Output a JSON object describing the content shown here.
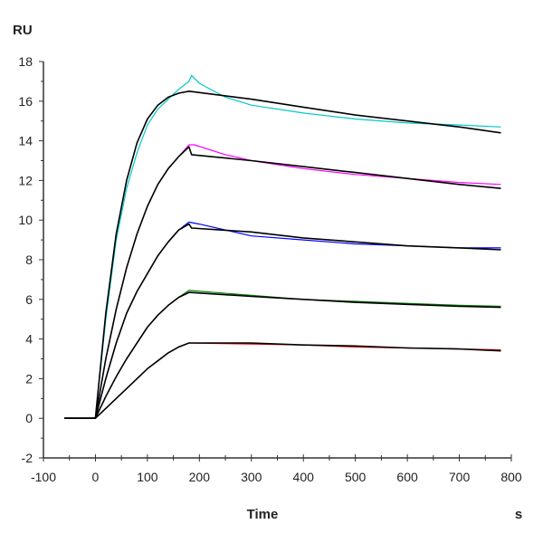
{
  "chart_data": {
    "type": "line",
    "title": "",
    "xlabel": "Time",
    "xunit": "s",
    "ylabel": "RU",
    "xlim": [
      -100,
      800
    ],
    "ylim": [
      -2,
      18
    ],
    "xticks": [
      -100,
      0,
      100,
      200,
      300,
      400,
      500,
      600,
      700,
      800
    ],
    "yticks": [
      -2,
      0,
      2,
      4,
      6,
      8,
      10,
      12,
      14,
      16,
      18
    ],
    "grid": false,
    "legend": "none",
    "series": [
      {
        "color": "#00c8c8",
        "kind": "data",
        "x": [
          -60,
          0,
          20,
          40,
          60,
          80,
          100,
          120,
          140,
          160,
          180,
          185,
          200,
          250,
          300,
          400,
          500,
          600,
          700,
          780
        ],
        "y": [
          0,
          0,
          5,
          9,
          11.6,
          13.4,
          14.8,
          15.6,
          16.1,
          16.6,
          17.0,
          17.3,
          16.9,
          16.2,
          15.8,
          15.4,
          15.1,
          14.9,
          14.8,
          14.7
        ]
      },
      {
        "color": "#000000",
        "kind": "fit",
        "x": [
          -60,
          0,
          20,
          40,
          60,
          80,
          100,
          120,
          140,
          160,
          180,
          300,
          400,
          500,
          600,
          700,
          780
        ],
        "y": [
          0,
          0,
          5.3,
          9.3,
          12,
          13.9,
          15.1,
          15.8,
          16.2,
          16.4,
          16.5,
          16.1,
          15.7,
          15.3,
          15,
          14.7,
          14.4
        ]
      },
      {
        "color": "#ff00ff",
        "kind": "data",
        "x": [
          -60,
          0,
          20,
          40,
          60,
          80,
          100,
          120,
          140,
          160,
          180,
          190,
          250,
          300,
          400,
          500,
          600,
          700,
          780
        ],
        "y": [
          0,
          0,
          3,
          5.5,
          7.6,
          9.3,
          10.7,
          11.8,
          12.6,
          13.2,
          13.8,
          13.8,
          13.3,
          13.0,
          12.6,
          12.3,
          12.1,
          11.9,
          11.8
        ]
      },
      {
        "color": "#000000",
        "kind": "fit",
        "x": [
          -60,
          0,
          20,
          40,
          60,
          80,
          100,
          120,
          140,
          160,
          180,
          185,
          300,
          400,
          500,
          600,
          700,
          780
        ],
        "y": [
          0,
          0,
          3,
          5.5,
          7.6,
          9.3,
          10.7,
          11.8,
          12.6,
          13.2,
          13.7,
          13.3,
          13.0,
          12.7,
          12.4,
          12.1,
          11.8,
          11.6
        ]
      },
      {
        "color": "#0000ff",
        "kind": "data",
        "x": [
          -60,
          0,
          20,
          40,
          60,
          80,
          100,
          120,
          140,
          160,
          180,
          200,
          300,
          400,
          500,
          600,
          700,
          780
        ],
        "y": [
          0,
          0,
          2,
          3.8,
          5.3,
          6.4,
          7.3,
          8.2,
          8.9,
          9.5,
          9.9,
          9.8,
          9.2,
          9.0,
          8.8,
          8.7,
          8.6,
          8.6
        ]
      },
      {
        "color": "#000000",
        "kind": "fit",
        "x": [
          -60,
          0,
          20,
          40,
          60,
          80,
          100,
          120,
          140,
          160,
          180,
          185,
          300,
          400,
          500,
          600,
          700,
          780
        ],
        "y": [
          0,
          0,
          2,
          3.8,
          5.3,
          6.4,
          7.3,
          8.2,
          8.9,
          9.5,
          9.8,
          9.6,
          9.4,
          9.1,
          8.9,
          8.7,
          8.6,
          8.5
        ]
      },
      {
        "color": "#008000",
        "kind": "data",
        "x": [
          -60,
          0,
          20,
          40,
          60,
          80,
          100,
          120,
          140,
          160,
          180,
          300,
          400,
          500,
          600,
          700,
          780
        ],
        "y": [
          0,
          0,
          1.1,
          2.1,
          3.0,
          3.8,
          4.6,
          5.2,
          5.7,
          6.1,
          6.45,
          6.2,
          6.0,
          5.9,
          5.8,
          5.7,
          5.65
        ]
      },
      {
        "color": "#000000",
        "kind": "fit",
        "x": [
          -60,
          0,
          20,
          40,
          60,
          80,
          100,
          120,
          140,
          160,
          180,
          300,
          400,
          500,
          600,
          700,
          780
        ],
        "y": [
          0,
          0,
          1.1,
          2.1,
          3.0,
          3.8,
          4.6,
          5.2,
          5.7,
          6.1,
          6.35,
          6.15,
          6.0,
          5.85,
          5.75,
          5.65,
          5.6
        ]
      },
      {
        "color": "#ff0000",
        "kind": "data",
        "x": [
          -60,
          0,
          20,
          40,
          60,
          80,
          100,
          120,
          140,
          160,
          180,
          300,
          400,
          500,
          600,
          700,
          780
        ],
        "y": [
          0,
          0,
          0.5,
          1.0,
          1.5,
          2.0,
          2.5,
          2.9,
          3.3,
          3.6,
          3.8,
          3.75,
          3.7,
          3.6,
          3.55,
          3.5,
          3.45
        ]
      },
      {
        "color": "#000000",
        "kind": "fit",
        "x": [
          -60,
          0,
          20,
          40,
          60,
          80,
          100,
          120,
          140,
          160,
          180,
          300,
          400,
          500,
          600,
          700,
          780
        ],
        "y": [
          0,
          0,
          0.5,
          1.0,
          1.5,
          2.0,
          2.5,
          2.9,
          3.3,
          3.6,
          3.8,
          3.8,
          3.7,
          3.65,
          3.55,
          3.5,
          3.4
        ]
      }
    ]
  }
}
